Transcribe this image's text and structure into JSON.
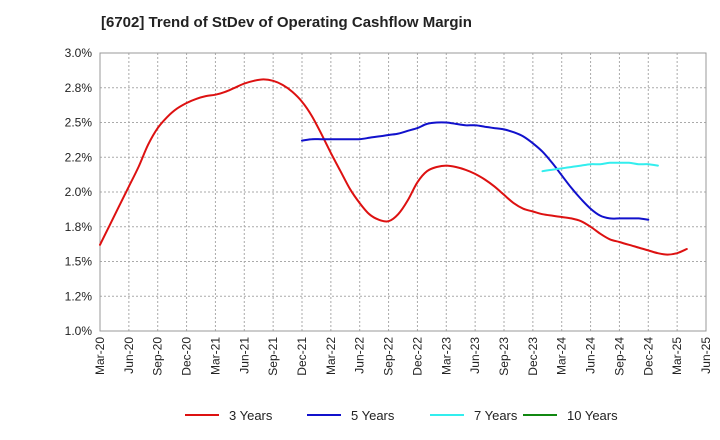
{
  "chart_data": {
    "type": "line",
    "title": "[6702]  Trend of StDev of Operating Cashflow Margin",
    "xlabel": "",
    "ylabel": "",
    "x_tick_labels": [
      "Mar-20",
      "Jun-20",
      "Sep-20",
      "Dec-20",
      "Mar-21",
      "Jun-21",
      "Sep-21",
      "Dec-21",
      "Mar-22",
      "Jun-22",
      "Sep-22",
      "Dec-22",
      "Mar-23",
      "Jun-23",
      "Sep-23",
      "Dec-23",
      "Mar-24",
      "Jun-24",
      "Sep-24",
      "Dec-24",
      "Mar-25",
      "Jun-25"
    ],
    "y_tick_labels": [
      "1.0%",
      "1.2%",
      "1.5%",
      "1.8%",
      "2.0%",
      "2.2%",
      "2.5%",
      "2.8%",
      "3.0%"
    ],
    "ylim": [
      1.0,
      3.0
    ],
    "grid": true,
    "legend_position": "bottom",
    "series": [
      {
        "name": "3 Years",
        "color": "#dd1111",
        "start_index": 0,
        "values": [
          1.62,
          1.76,
          1.9,
          2.04,
          2.18,
          2.34,
          2.46,
          2.54,
          2.6,
          2.64,
          2.67,
          2.69,
          2.7,
          2.72,
          2.75,
          2.78,
          2.8,
          2.81,
          2.8,
          2.77,
          2.72,
          2.65,
          2.55,
          2.42,
          2.28,
          2.15,
          2.02,
          1.92,
          1.84,
          1.8,
          1.79,
          1.84,
          1.94,
          2.07,
          2.15,
          2.18,
          2.19,
          2.18,
          2.16,
          2.13,
          2.09,
          2.04,
          1.98,
          1.92,
          1.88,
          1.86,
          1.84,
          1.83,
          1.82,
          1.81,
          1.79,
          1.75,
          1.7,
          1.66,
          1.64,
          1.62,
          1.6,
          1.58,
          1.56,
          1.55,
          1.56,
          1.59
        ]
      },
      {
        "name": "5 Years",
        "color": "#1111cc",
        "start_index": 21,
        "values": [
          2.37,
          2.38,
          2.38,
          2.38,
          2.38,
          2.38,
          2.38,
          2.39,
          2.4,
          2.41,
          2.42,
          2.44,
          2.46,
          2.49,
          2.5,
          2.5,
          2.49,
          2.48,
          2.48,
          2.47,
          2.46,
          2.45,
          2.43,
          2.4,
          2.35,
          2.29,
          2.21,
          2.12,
          2.03,
          1.95,
          1.88,
          1.83,
          1.81,
          1.81,
          1.81,
          1.81,
          1.8
        ]
      },
      {
        "name": "7 Years",
        "color": "#33eeee",
        "start_index": 46,
        "values": [
          2.15,
          2.16,
          2.17,
          2.18,
          2.19,
          2.2,
          2.2,
          2.21,
          2.21,
          2.21,
          2.2,
          2.2,
          2.19
        ]
      },
      {
        "name": "10 Years",
        "color": "#118811",
        "start_index": 0,
        "values": []
      }
    ]
  }
}
